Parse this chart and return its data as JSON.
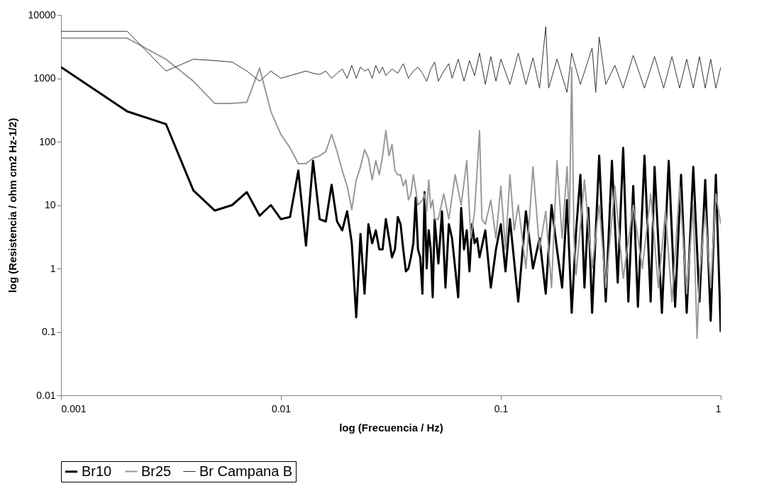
{
  "chart_data": {
    "type": "line",
    "xlabel": "log (Frecuencia / Hz)",
    "ylabel": "log (Resistencia / ohm cm2 Hz-1/2)",
    "log": "xy",
    "xlim": [
      0.001,
      1
    ],
    "xticks": [
      0.001,
      0.01,
      0.1,
      1
    ],
    "ylim": [
      0.01,
      10000
    ],
    "yticks": [
      0.01,
      0.1,
      1,
      10,
      100,
      1000,
      10000
    ],
    "legend": "bottom",
    "grid": false,
    "marker": "none",
    "line_style": "solid",
    "series": [
      {
        "name": "Br10",
        "color": "#000000",
        "x": [
          0.001,
          0.002,
          0.003,
          0.004,
          0.005,
          0.006,
          0.007,
          0.008,
          0.009,
          0.01,
          0.011,
          0.012,
          0.013,
          0.014,
          0.015,
          0.016,
          0.017,
          0.018,
          0.019,
          0.02,
          0.021,
          0.022,
          0.023,
          0.024,
          0.025,
          0.026,
          0.027,
          0.028,
          0.029,
          0.03,
          0.031,
          0.032,
          0.033,
          0.034,
          0.035,
          0.036,
          0.037,
          0.038,
          0.039,
          0.04,
          0.041,
          0.042,
          0.043,
          0.044,
          0.045,
          0.046,
          0.047,
          0.048,
          0.049,
          0.05,
          0.052,
          0.054,
          0.056,
          0.058,
          0.06,
          0.062,
          0.064,
          0.066,
          0.068,
          0.07,
          0.072,
          0.074,
          0.076,
          0.078,
          0.08,
          0.085,
          0.09,
          0.095,
          0.1,
          0.105,
          0.11,
          0.12,
          0.13,
          0.14,
          0.15,
          0.16,
          0.17,
          0.18,
          0.19,
          0.2,
          0.21,
          0.22,
          0.23,
          0.24,
          0.25,
          0.26,
          0.28,
          0.3,
          0.32,
          0.34,
          0.36,
          0.38,
          0.4,
          0.42,
          0.45,
          0.48,
          0.5,
          0.54,
          0.58,
          0.62,
          0.66,
          0.7,
          0.75,
          0.8,
          0.85,
          0.9,
          0.95,
          1
        ],
        "values": [
          1500,
          300,
          190,
          17,
          8.2,
          10,
          16,
          6.8,
          10,
          6,
          6.5,
          35,
          2.3,
          50,
          6,
          5.5,
          21,
          5.5,
          4,
          8,
          2.5,
          0.17,
          3.5,
          0.4,
          5,
          2.5,
          4,
          2,
          2,
          6,
          3,
          1.5,
          2,
          6.5,
          5,
          2,
          0.9,
          1,
          1.5,
          2.5,
          13,
          2,
          1.5,
          0.4,
          16,
          1,
          4,
          2,
          0.35,
          6,
          1.2,
          8,
          0.5,
          5,
          3,
          1,
          0.35,
          9,
          2,
          4,
          0.9,
          5,
          2.5,
          3,
          1.5,
          4,
          0.5,
          2,
          5,
          0.9,
          6,
          0.3,
          8,
          1,
          3,
          0.4,
          10,
          2,
          0.5,
          12,
          0.2,
          4,
          30,
          0.5,
          9,
          0.2,
          60,
          0.3,
          50,
          0.6,
          80,
          0.3,
          20,
          0.25,
          60,
          0.3,
          40,
          0.2,
          50,
          0.25,
          30,
          0.2,
          40,
          0.3,
          25,
          0.15,
          30,
          0.1
        ]
      },
      {
        "name": "Br25",
        "color": "#999999",
        "x": [
          0.001,
          0.002,
          0.003,
          0.004,
          0.005,
          0.006,
          0.007,
          0.008,
          0.009,
          0.01,
          0.011,
          0.012,
          0.013,
          0.014,
          0.015,
          0.016,
          0.017,
          0.018,
          0.019,
          0.02,
          0.021,
          0.022,
          0.023,
          0.024,
          0.025,
          0.026,
          0.027,
          0.028,
          0.029,
          0.03,
          0.031,
          0.032,
          0.033,
          0.034,
          0.035,
          0.036,
          0.037,
          0.038,
          0.039,
          0.04,
          0.041,
          0.042,
          0.043,
          0.044,
          0.045,
          0.046,
          0.047,
          0.048,
          0.049,
          0.05,
          0.052,
          0.055,
          0.058,
          0.062,
          0.066,
          0.07,
          0.073,
          0.076,
          0.08,
          0.082,
          0.085,
          0.09,
          0.095,
          0.1,
          0.105,
          0.11,
          0.115,
          0.12,
          0.13,
          0.14,
          0.15,
          0.16,
          0.17,
          0.18,
          0.19,
          0.2,
          0.205,
          0.21,
          0.215,
          0.22,
          0.24,
          0.26,
          0.28,
          0.3,
          0.33,
          0.36,
          0.4,
          0.44,
          0.48,
          0.52,
          0.56,
          0.6,
          0.65,
          0.7,
          0.75,
          0.78,
          0.8,
          0.85,
          0.9,
          0.95,
          1
        ],
        "values": [
          4300,
          4300,
          2000,
          900,
          400,
          400,
          420,
          1450,
          300,
          130,
          80,
          45,
          45,
          55,
          60,
          70,
          130,
          70,
          35,
          20,
          8.5,
          25,
          40,
          75,
          55,
          25,
          50,
          30,
          60,
          150,
          60,
          90,
          35,
          30,
          30,
          20,
          25,
          12,
          15,
          30,
          18,
          10,
          11,
          12,
          15,
          8,
          25,
          9,
          12,
          6,
          6,
          15,
          6,
          30,
          10,
          50,
          3,
          8,
          150,
          6,
          5,
          12,
          3,
          20,
          2,
          30,
          4,
          10,
          1,
          40,
          2,
          8,
          0.5,
          50,
          3,
          40,
          5,
          1500,
          3,
          0.8,
          25,
          1,
          10,
          0.5,
          20,
          0.7,
          10,
          1,
          15,
          0.5,
          8,
          0.3,
          20,
          0.4,
          10,
          0.08,
          0.7,
          8,
          0.5,
          15,
          5
        ]
      },
      {
        "name": "Br Campana B",
        "color": "#333333",
        "x": [
          0.001,
          0.002,
          0.003,
          0.004,
          0.005,
          0.006,
          0.007,
          0.008,
          0.009,
          0.01,
          0.011,
          0.012,
          0.013,
          0.014,
          0.015,
          0.016,
          0.017,
          0.018,
          0.019,
          0.02,
          0.021,
          0.022,
          0.023,
          0.024,
          0.025,
          0.026,
          0.027,
          0.028,
          0.029,
          0.03,
          0.032,
          0.034,
          0.036,
          0.038,
          0.04,
          0.042,
          0.044,
          0.046,
          0.048,
          0.05,
          0.052,
          0.055,
          0.058,
          0.06,
          0.064,
          0.068,
          0.072,
          0.076,
          0.08,
          0.085,
          0.09,
          0.095,
          0.1,
          0.11,
          0.12,
          0.13,
          0.14,
          0.15,
          0.16,
          0.165,
          0.18,
          0.2,
          0.21,
          0.23,
          0.26,
          0.27,
          0.28,
          0.3,
          0.33,
          0.36,
          0.4,
          0.45,
          0.5,
          0.55,
          0.6,
          0.65,
          0.7,
          0.75,
          0.8,
          0.85,
          0.9,
          0.95,
          1
        ],
        "values": [
          5500,
          5500,
          1300,
          2000,
          1900,
          1800,
          1300,
          900,
          1300,
          1000,
          1100,
          1200,
          1300,
          1200,
          1150,
          1300,
          1000,
          1200,
          1400,
          1000,
          1600,
          1000,
          1500,
          1300,
          1400,
          1000,
          1600,
          1200,
          1500,
          1100,
          1400,
          1200,
          1700,
          1000,
          1300,
          1500,
          1200,
          900,
          1400,
          1800,
          900,
          1300,
          1700,
          1000,
          2000,
          900,
          1900,
          1100,
          2500,
          800,
          2200,
          900,
          2000,
          800,
          2500,
          800,
          2100,
          700,
          6500,
          700,
          2000,
          600,
          2500,
          800,
          3000,
          600,
          4500,
          800,
          1600,
          700,
          2300,
          700,
          2200,
          700,
          2200,
          700,
          2000,
          700,
          2200,
          700,
          2000,
          700,
          1500
        ]
      }
    ]
  }
}
